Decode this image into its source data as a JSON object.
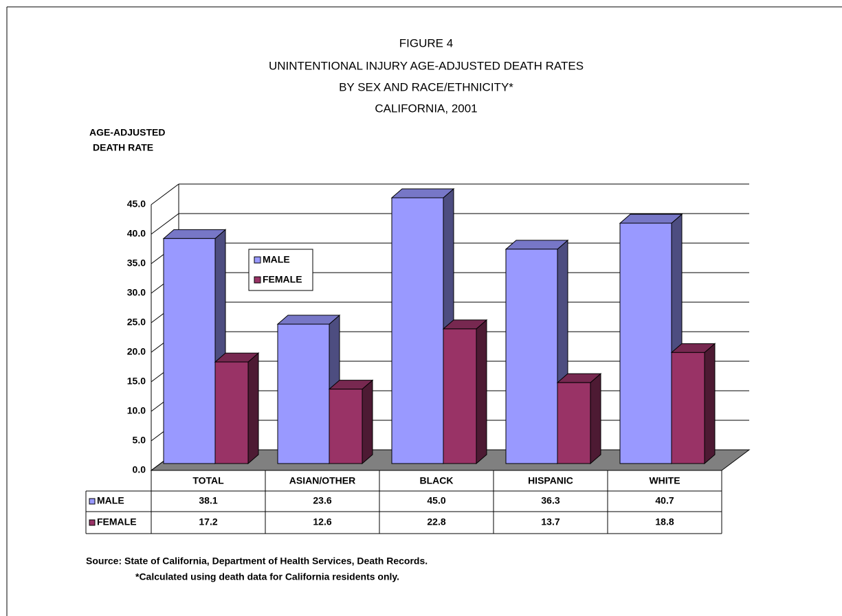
{
  "chart_data": {
    "type": "bar3d",
    "title": [
      "FIGURE 4",
      "UNINTENTIONAL INJURY AGE-ADJUSTED DEATH RATES",
      "BY SEX AND RACE/ETHNICITY*",
      "CALIFORNIA, 2001"
    ],
    "y_label": [
      "AGE-ADJUSTED",
      "DEATH RATE"
    ],
    "categories": [
      "TOTAL",
      "ASIAN/OTHER",
      "BLACK",
      "HISPANIC",
      "WHITE"
    ],
    "series": [
      {
        "name": "MALE",
        "color": "#9999ff",
        "values": [
          38.1,
          23.6,
          45.0,
          36.3,
          40.7
        ],
        "value_labels": [
          "38.1",
          "23.6",
          "45.0",
          "36.3",
          "40.7"
        ]
      },
      {
        "name": "FEMALE",
        "color": "#993366",
        "values": [
          17.2,
          12.6,
          22.8,
          13.7,
          18.8
        ],
        "value_labels": [
          "17.2",
          "12.6",
          "22.8",
          "13.7",
          "18.8"
        ]
      }
    ],
    "ylim": [
      0,
      45
    ],
    "yticks": [
      {
        "value": 0,
        "label": "0.0"
      },
      {
        "value": 5,
        "label": "5.0"
      },
      {
        "value": 10,
        "label": "10.0"
      },
      {
        "value": 15,
        "label": "15.0"
      },
      {
        "value": 20,
        "label": "20.0"
      },
      {
        "value": 25,
        "label": "25.0"
      },
      {
        "value": 30,
        "label": "30.0"
      },
      {
        "value": 35,
        "label": "35.0"
      },
      {
        "value": 40,
        "label": "40.0"
      },
      {
        "value": 45,
        "label": "45.0"
      }
    ],
    "grid": true,
    "notes": [
      "Source: State of California, Department of Health Services, Death Records.",
      "*Calculated using death data for California residents only."
    ]
  }
}
